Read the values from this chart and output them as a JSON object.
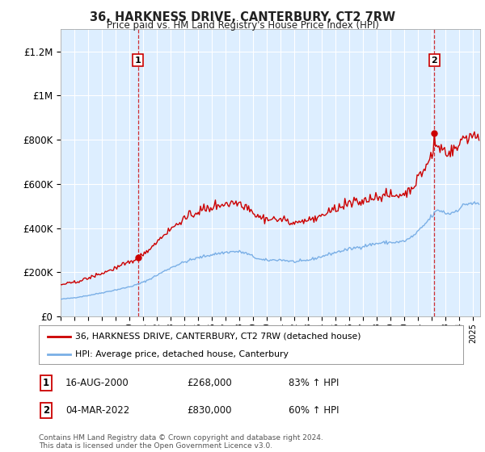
{
  "title": "36, HARKNESS DRIVE, CANTERBURY, CT2 7RW",
  "subtitle": "Price paid vs. HM Land Registry's House Price Index (HPI)",
  "ylabel_ticks": [
    "£0",
    "£200K",
    "£400K",
    "£600K",
    "£800K",
    "£1M",
    "£1.2M"
  ],
  "ytick_vals": [
    0,
    200000,
    400000,
    600000,
    800000,
    1000000,
    1200000
  ],
  "ylim": [
    0,
    1300000
  ],
  "xlim_start": 1995.0,
  "xlim_end": 2025.5,
  "line1_color": "#cc0000",
  "line2_color": "#7aafe6",
  "marker_color": "#cc0000",
  "dashed_color": "#cc0000",
  "grid_color": "#cccccc",
  "bg_color": "#ffffff",
  "chart_bg_color": "#ddeeff",
  "legend_label1": "36, HARKNESS DRIVE, CANTERBURY, CT2 7RW (detached house)",
  "legend_label2": "HPI: Average price, detached house, Canterbury",
  "annotation1_label": "1",
  "annotation1_date": "16-AUG-2000",
  "annotation1_price": "£268,000",
  "annotation1_hpi": "83% ↑ HPI",
  "annotation2_label": "2",
  "annotation2_date": "04-MAR-2022",
  "annotation2_price": "£830,000",
  "annotation2_hpi": "60% ↑ HPI",
  "footnote": "Contains HM Land Registry data © Crown copyright and database right 2024.\nThis data is licensed under the Open Government Licence v3.0.",
  "sale1_x": 2000.62,
  "sale1_y": 268000,
  "sale2_x": 2022.17,
  "sale2_y": 830000
}
